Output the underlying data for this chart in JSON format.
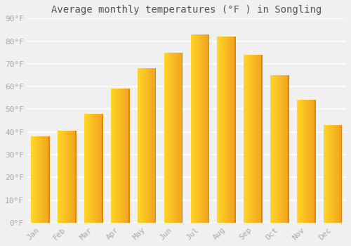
{
  "title": "Average monthly temperatures (°F ) in Songling",
  "months": [
    "Jan",
    "Feb",
    "Mar",
    "Apr",
    "May",
    "Jun",
    "Jul",
    "Aug",
    "Sep",
    "Oct",
    "Nov",
    "Dec"
  ],
  "values": [
    38,
    40.5,
    48,
    59,
    68,
    75,
    83,
    82,
    74,
    65,
    54,
    43
  ],
  "bar_color_left": "#FFD526",
  "bar_color_right": "#F0A020",
  "bar_color_edge": "#E08800",
  "background_color": "#f0f0f0",
  "grid_color": "#ffffff",
  "ylim": [
    0,
    90
  ],
  "yticks": [
    0,
    10,
    20,
    30,
    40,
    50,
    60,
    70,
    80,
    90
  ],
  "ytick_labels": [
    "0°F",
    "10°F",
    "20°F",
    "30°F",
    "40°F",
    "50°F",
    "60°F",
    "70°F",
    "80°F",
    "90°F"
  ],
  "title_fontsize": 10,
  "tick_fontsize": 8,
  "tick_color": "#aaaaaa",
  "title_color": "#555555"
}
